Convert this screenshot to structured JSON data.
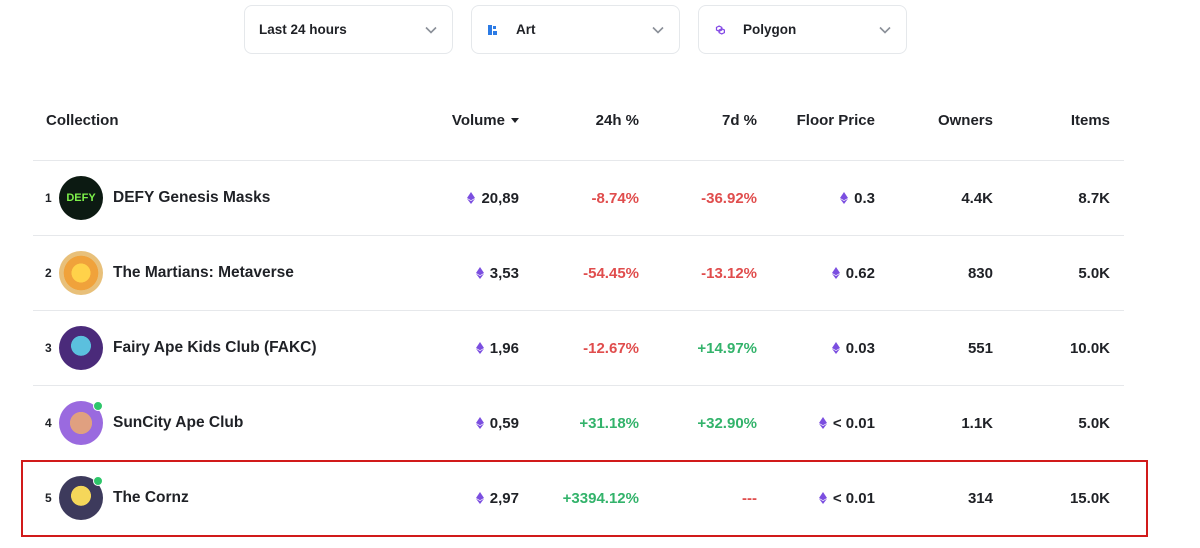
{
  "filters": [
    {
      "label": "Last 24 hours",
      "icon": "none"
    },
    {
      "label": "Art",
      "icon": "art-icon"
    },
    {
      "label": "Polygon",
      "icon": "polygon-icon"
    }
  ],
  "table": {
    "headers": {
      "collection": "Collection",
      "volume": "Volume",
      "change24h": "24h %",
      "change7d": "7d %",
      "floor": "Floor Price",
      "owners": "Owners",
      "items": "Items"
    },
    "rows": [
      {
        "rank": "1",
        "name": "DEFY Genesis Masks",
        "volume": "20,89",
        "change24h": "-8.74%",
        "change7d": "-36.92%",
        "floor": "0.3",
        "owners": "4.4K",
        "items": "8.7K",
        "avatar_text": "DEFY"
      },
      {
        "rank": "2",
        "name": "The Martians: Metaverse",
        "volume": "3,53",
        "change24h": "-54.45%",
        "change7d": "-13.12%",
        "floor": "0.62",
        "owners": "830",
        "items": "5.0K"
      },
      {
        "rank": "3",
        "name": "Fairy Ape Kids Club (FAKC)",
        "volume": "1,96",
        "change24h": "-12.67%",
        "change7d": "+14.97%",
        "floor": "0.03",
        "owners": "551",
        "items": "10.0K"
      },
      {
        "rank": "4",
        "name": "SunCity Ape Club",
        "volume": "0,59",
        "change24h": "+31.18%",
        "change7d": "+32.90%",
        "floor": "< 0.01",
        "owners": "1.1K",
        "items": "5.0K"
      },
      {
        "rank": "5",
        "name": "The Cornz",
        "volume": "2,97",
        "change24h": "+3394.12%",
        "change7d": "---",
        "floor": "< 0.01",
        "owners": "314",
        "items": "15.0K"
      }
    ]
  },
  "colors": {
    "negative": "#e04d4d",
    "positive": "#33b36b",
    "highlight": "#d11a1a",
    "eth": "#7b4ee0"
  }
}
